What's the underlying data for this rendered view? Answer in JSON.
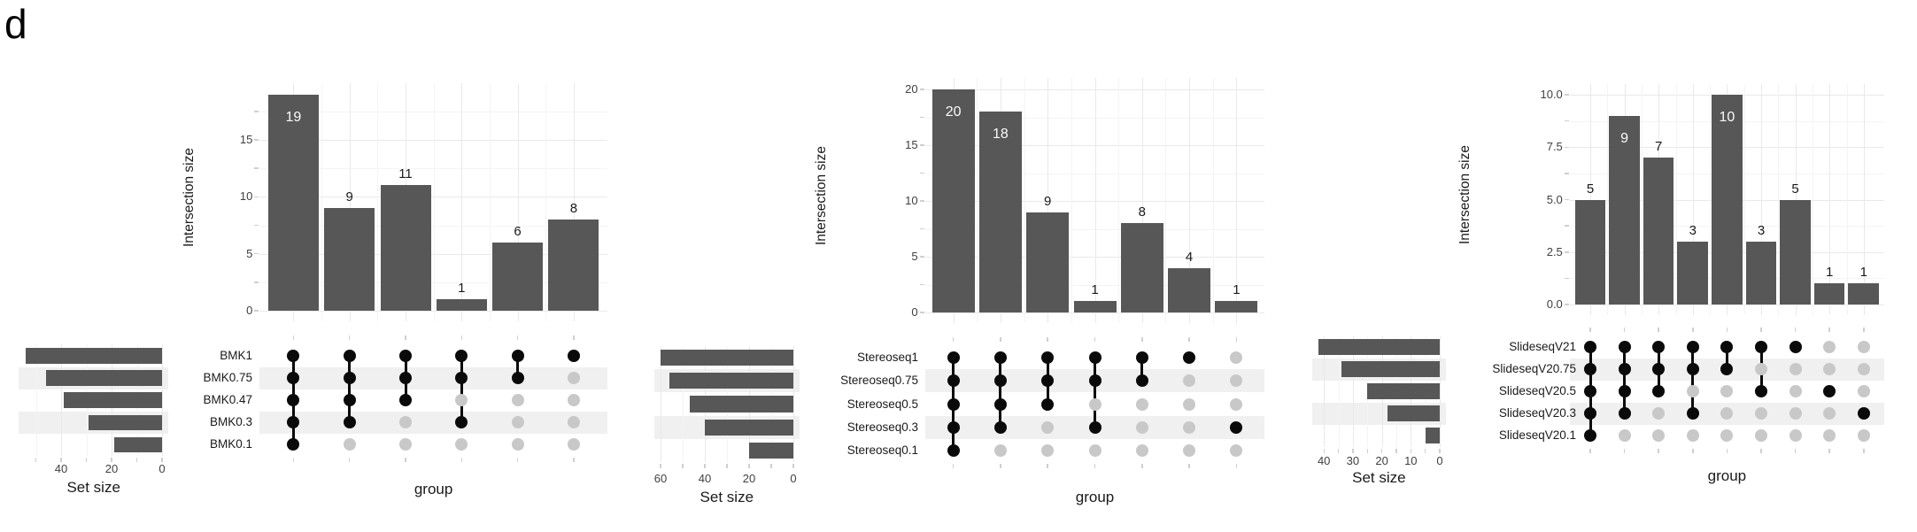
{
  "figure": {
    "label": "d"
  },
  "colors": {
    "background": "#ffffff",
    "bar": "#575757",
    "dot_filled": "#0a0a0a",
    "dot_empty": "#c8c8c8",
    "stripe": "#f0f0f0",
    "grid_major": "#e9e9e9",
    "grid_minor": "#f4f4f4",
    "axis_tick": "#cfcfcf",
    "tick_text": "#404040",
    "text": "#1a1a1a",
    "bar_label_inside": "#fafafa"
  },
  "chart_data": [
    {
      "type": "upset",
      "y_axis_title": "Intersection size",
      "x_axis_title": "group",
      "set_size_title": "Set size",
      "sets": [
        "BMK1",
        "BMK0.75",
        "BMK0.47",
        "BMK0.3",
        "BMK0.1"
      ],
      "set_sizes": [
        54,
        46,
        39,
        29,
        19
      ],
      "set_size_ticks": [
        {
          "v": 40,
          "label": "40"
        },
        {
          "v": 20,
          "label": "20"
        },
        {
          "v": 0,
          "label": "0"
        }
      ],
      "y_ticks": [
        {
          "v": 0,
          "label": "0"
        },
        {
          "v": 5,
          "label": "5"
        },
        {
          "v": 10,
          "label": "10"
        },
        {
          "v": 15,
          "label": "15"
        }
      ],
      "ylim": [
        0,
        20
      ],
      "grid": true,
      "intersections": [
        {
          "value": 19,
          "label": "19",
          "label_inside": true,
          "sets": [
            0,
            1,
            2,
            3,
            4
          ]
        },
        {
          "value": 9,
          "label": "9",
          "label_inside": false,
          "sets": [
            0,
            1,
            2,
            3
          ]
        },
        {
          "value": 11,
          "label": "11",
          "label_inside": false,
          "sets": [
            0,
            1,
            2
          ]
        },
        {
          "value": 1,
          "label": "1",
          "label_inside": false,
          "sets": [
            0,
            1,
            3
          ]
        },
        {
          "value": 6,
          "label": "6",
          "label_inside": false,
          "sets": [
            0,
            1
          ]
        },
        {
          "value": 8,
          "label": "8",
          "label_inside": false,
          "sets": [
            0
          ]
        }
      ]
    },
    {
      "type": "upset",
      "y_axis_title": "Intersection size",
      "x_axis_title": "group",
      "set_size_title": "Set size",
      "sets": [
        "Stereoseq1",
        "Stereoseq0.75",
        "Stereoseq0.5",
        "Stereoseq0.3",
        "Stereoseq0.1"
      ],
      "set_sizes": [
        60,
        56,
        47,
        40,
        20
      ],
      "set_size_ticks": [
        {
          "v": 60,
          "label": "60"
        },
        {
          "v": 40,
          "label": "40"
        },
        {
          "v": 20,
          "label": "20"
        },
        {
          "v": 0,
          "label": "0"
        }
      ],
      "y_ticks": [
        {
          "v": 0,
          "label": "0"
        },
        {
          "v": 5,
          "label": "5"
        },
        {
          "v": 10,
          "label": "10"
        },
        {
          "v": 15,
          "label": "15"
        },
        {
          "v": 20,
          "label": "20"
        }
      ],
      "ylim": [
        0,
        21
      ],
      "grid": true,
      "intersections": [
        {
          "value": 20,
          "label": "20",
          "label_inside": true,
          "sets": [
            0,
            1,
            2,
            3,
            4
          ]
        },
        {
          "value": 18,
          "label": "18",
          "label_inside": true,
          "sets": [
            0,
            1,
            2,
            3
          ]
        },
        {
          "value": 9,
          "label": "9",
          "label_inside": false,
          "sets": [
            0,
            1,
            2
          ]
        },
        {
          "value": 1,
          "label": "1",
          "label_inside": false,
          "sets": [
            0,
            1,
            3
          ]
        },
        {
          "value": 8,
          "label": "8",
          "label_inside": false,
          "sets": [
            0,
            1
          ]
        },
        {
          "value": 4,
          "label": "4",
          "label_inside": false,
          "sets": [
            0
          ]
        },
        {
          "value": 1,
          "label": "1",
          "label_inside": false,
          "sets": [
            3
          ]
        }
      ]
    },
    {
      "type": "upset",
      "y_axis_title": "Intersection size",
      "x_axis_title": "group",
      "set_size_title": "Set size",
      "sets": [
        "SlideseqV21",
        "SlideseqV20.75",
        "SlideseqV20.5",
        "SlideseqV20.3",
        "SlideseqV20.1"
      ],
      "set_sizes": [
        42,
        34,
        25,
        18,
        5
      ],
      "set_size_ticks": [
        {
          "v": 40,
          "label": "40"
        },
        {
          "v": 30,
          "label": "30"
        },
        {
          "v": 20,
          "label": "20"
        },
        {
          "v": 10,
          "label": "10"
        },
        {
          "v": 0,
          "label": "0"
        }
      ],
      "y_ticks": [
        {
          "v": 0,
          "label": "0.0"
        },
        {
          "v": 2.5,
          "label": "2.5"
        },
        {
          "v": 5,
          "label": "5.0"
        },
        {
          "v": 7.5,
          "label": "7.5"
        },
        {
          "v": 10,
          "label": "10.0"
        }
      ],
      "ylim": [
        0,
        10.5
      ],
      "grid": true,
      "intersections": [
        {
          "value": 5,
          "label": "5",
          "label_inside": false,
          "sets": [
            0,
            1,
            2,
            3,
            4
          ]
        },
        {
          "value": 9,
          "label": "9",
          "label_inside": true,
          "sets": [
            0,
            1,
            2,
            3
          ]
        },
        {
          "value": 7,
          "label": "7",
          "label_inside": false,
          "sets": [
            0,
            1,
            2
          ]
        },
        {
          "value": 3,
          "label": "3",
          "label_inside": false,
          "sets": [
            0,
            1,
            3
          ]
        },
        {
          "value": 10,
          "label": "10",
          "label_inside": true,
          "sets": [
            0,
            1
          ]
        },
        {
          "value": 3,
          "label": "3",
          "label_inside": false,
          "sets": [
            0,
            2
          ]
        },
        {
          "value": 5,
          "label": "5",
          "label_inside": false,
          "sets": [
            0
          ]
        },
        {
          "value": 1,
          "label": "1",
          "label_inside": false,
          "sets": [
            2
          ]
        },
        {
          "value": 1,
          "label": "1",
          "label_inside": false,
          "sets": [
            3
          ]
        }
      ]
    }
  ]
}
